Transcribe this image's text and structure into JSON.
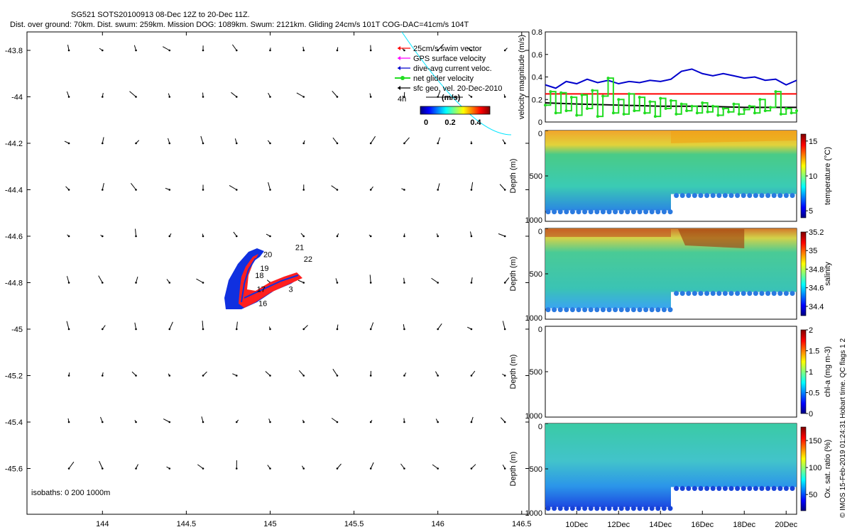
{
  "header": {
    "line1": "SG521 SOTS20100913 08-Dec 12Z to 20-Dec 11Z.",
    "line2": "Dist. over ground: 70km. Dist. swum: 259km. Mission DOG: 1089km. Swum: 2121km. Gliding 24cm/s 101T COG-DAC=41cm/s 104T"
  },
  "side_note": "© IMOS 15-Feb-2019 01:24:31 Hobart time. QC flags 1  2",
  "colors": {
    "swim": "#ff0000",
    "gps": "#ff00ff",
    "dac": "#0000cc",
    "net": "#22dd22",
    "geo": "#000000",
    "track_red": "#ff2020",
    "track_blue": "#1030e0",
    "isobath": "#00e5ff"
  },
  "map": {
    "lon_ticks": [
      "144",
      "144.5",
      "145",
      "145.5",
      "146",
      "146.5"
    ],
    "lat_ticks": [
      "-43.8",
      "-44",
      "-44.2",
      "-44.4",
      "-44.6",
      "-44.8",
      "-45",
      "-45.2",
      "-45.4",
      "-45.6"
    ],
    "xlim": [
      143.55,
      146.5
    ],
    "ylim": [
      -45.8,
      -43.7
    ],
    "isobaths_label": "isobaths: 0   200  1000m",
    "legend": [
      {
        "key": "swim",
        "label": "25cm/s swim vector"
      },
      {
        "key": "gps",
        "label": "GPS surface velocity"
      },
      {
        "key": "dac",
        "label": "dive-avg current veloc."
      },
      {
        "key": "net",
        "label": "net glider velocity"
      },
      {
        "key": "geo",
        "label": "sfc geo. vel. 20-Dec-2010"
      }
    ],
    "scale_label": "4h",
    "units_label": "(m/s)",
    "colorbar_ticks": [
      "0",
      "0.2",
      "0.4"
    ],
    "day_labels": [
      {
        "text": "21",
        "lon": 145.15,
        "lat": -44.66
      },
      {
        "text": "22",
        "lon": 145.2,
        "lat": -44.71
      },
      {
        "text": "20",
        "lon": 144.96,
        "lat": -44.69
      },
      {
        "text": "19",
        "lon": 144.94,
        "lat": -44.75
      },
      {
        "text": "18",
        "lon": 144.91,
        "lat": -44.78
      },
      {
        "text": "17",
        "lon": 144.92,
        "lat": -44.84
      },
      {
        "text": "16",
        "lon": 144.93,
        "lat": -44.9
      },
      {
        "text": "3",
        "lon": 145.11,
        "lat": -44.84
      }
    ]
  },
  "chart_data": [
    {
      "type": "line",
      "title": "velocity magnitude",
      "ylabel": "velocity magnitude (m/s)",
      "ylim": [
        0,
        0.8
      ],
      "yticks": [
        "0",
        "0.2",
        "0.4",
        "0.6",
        "0.8"
      ],
      "x_days": [
        8.5,
        20.5
      ],
      "series": [
        {
          "name": "dive-avg current veloc.",
          "color": "#0000cc",
          "x": [
            8.5,
            9.0,
            9.5,
            10.0,
            10.5,
            11.0,
            11.5,
            12.0,
            12.5,
            13.0,
            13.5,
            14.0,
            14.5,
            15.0,
            15.5,
            16.0,
            16.5,
            17.0,
            17.5,
            18.0,
            18.5,
            19.0,
            19.5,
            20.0,
            20.5
          ],
          "values": [
            0.33,
            0.3,
            0.36,
            0.34,
            0.38,
            0.35,
            0.37,
            0.34,
            0.36,
            0.35,
            0.37,
            0.36,
            0.38,
            0.45,
            0.47,
            0.43,
            0.41,
            0.43,
            0.41,
            0.39,
            0.4,
            0.37,
            0.38,
            0.33,
            0.37
          ]
        },
        {
          "name": "25cm/s swim vector",
          "color": "#ff0000",
          "x": [
            8.5,
            20.5
          ],
          "values": [
            0.25,
            0.25
          ]
        },
        {
          "name": "sfc geo. vel.",
          "color": "#000000",
          "x": [
            8.5,
            10.0,
            12.0,
            14.0,
            16.0,
            18.0,
            20.5
          ],
          "values": [
            0.17,
            0.16,
            0.15,
            0.14,
            0.14,
            0.13,
            0.13
          ]
        },
        {
          "name": "net glider velocity",
          "color": "#22dd22",
          "x": [
            8.5,
            8.75,
            9.0,
            9.25,
            9.5,
            9.75,
            10.0,
            10.25,
            10.5,
            10.75,
            11.0,
            11.25,
            11.5,
            11.75,
            12.0,
            12.25,
            12.5,
            12.75,
            13.0,
            13.25,
            13.5,
            13.75,
            14.0,
            14.25,
            14.5,
            14.75,
            15.0,
            15.25,
            15.5,
            15.75,
            16.0,
            16.25,
            16.5,
            16.75,
            17.0,
            17.25,
            17.5,
            17.75,
            18.0,
            18.25,
            18.5,
            18.75,
            19.0,
            19.25,
            19.5,
            19.75,
            20.0,
            20.25,
            20.5
          ],
          "values": [
            0.15,
            0.27,
            0.08,
            0.26,
            0.1,
            0.22,
            0.06,
            0.24,
            0.12,
            0.28,
            0.05,
            0.23,
            0.39,
            0.08,
            0.2,
            0.07,
            0.25,
            0.1,
            0.22,
            0.08,
            0.18,
            0.05,
            0.21,
            0.12,
            0.19,
            0.07,
            0.16,
            0.1,
            0.14,
            0.08,
            0.17,
            0.09,
            0.14,
            0.06,
            0.12,
            0.09,
            0.16,
            0.07,
            0.11,
            0.14,
            0.08,
            0.2,
            0.1,
            0.13,
            0.27,
            0.07,
            0.12,
            0.08,
            0.1
          ]
        }
      ]
    },
    {
      "type": "heatmap",
      "name": "temperature",
      "ylabel": "Depth (m)",
      "clabel": "temperature (°C)",
      "depth_range": [
        0,
        1000
      ],
      "clim": [
        4,
        16
      ],
      "cticks": [
        {
          "label": "5",
          "v": 5
        },
        {
          "label": "10",
          "v": 10
        },
        {
          "label": "15",
          "v": 15
        }
      ],
      "yticks": [
        "0",
        "500",
        "1000"
      ]
    },
    {
      "type": "heatmap",
      "name": "salinity",
      "ylabel": "Depth (m)",
      "clabel": "salinity",
      "depth_range": [
        0,
        1000
      ],
      "clim": [
        34.3,
        35.2
      ],
      "cticks": [
        {
          "label": "34.4",
          "v": 34.4
        },
        {
          "label": "34.6",
          "v": 34.6
        },
        {
          "label": "34.8",
          "v": 34.8
        },
        {
          "label": "35",
          "v": 35.0
        },
        {
          "label": "35.2",
          "v": 35.2
        }
      ],
      "yticks": [
        "0",
        "500",
        "1000"
      ]
    },
    {
      "type": "heatmap",
      "name": "chl-a",
      "ylabel": "Depth (m)",
      "clabel": "chl-a (mg m-3)",
      "depth_range": [
        0,
        1000
      ],
      "clim": [
        0,
        2
      ],
      "cticks": [
        {
          "label": "0",
          "v": 0
        },
        {
          "label": "0.5",
          "v": 0.5
        },
        {
          "label": "1",
          "v": 1
        },
        {
          "label": "1.5",
          "v": 1.5
        },
        {
          "label": "2",
          "v": 2
        }
      ],
      "yticks": [
        "0",
        "500",
        "1000"
      ]
    },
    {
      "type": "heatmap",
      "name": "oxygen",
      "ylabel": "Depth (m)",
      "clabel": "Ox. sat. ratio (%)",
      "depth_range": [
        0,
        1000
      ],
      "clim": [
        20,
        175
      ],
      "cticks": [
        {
          "label": "50",
          "v": 50
        },
        {
          "label": "100",
          "v": 100
        },
        {
          "label": "150",
          "v": 150
        }
      ],
      "yticks": [
        "0",
        "500",
        "1000"
      ]
    }
  ],
  "time_axis": {
    "ticks": [
      {
        "label": "10Dec",
        "day": 10
      },
      {
        "label": "12Dec",
        "day": 12
      },
      {
        "label": "14Dec",
        "day": 14
      },
      {
        "label": "16Dec",
        "day": 16
      },
      {
        "label": "18Dec",
        "day": 18
      },
      {
        "label": "20Dec",
        "day": 20
      }
    ]
  }
}
